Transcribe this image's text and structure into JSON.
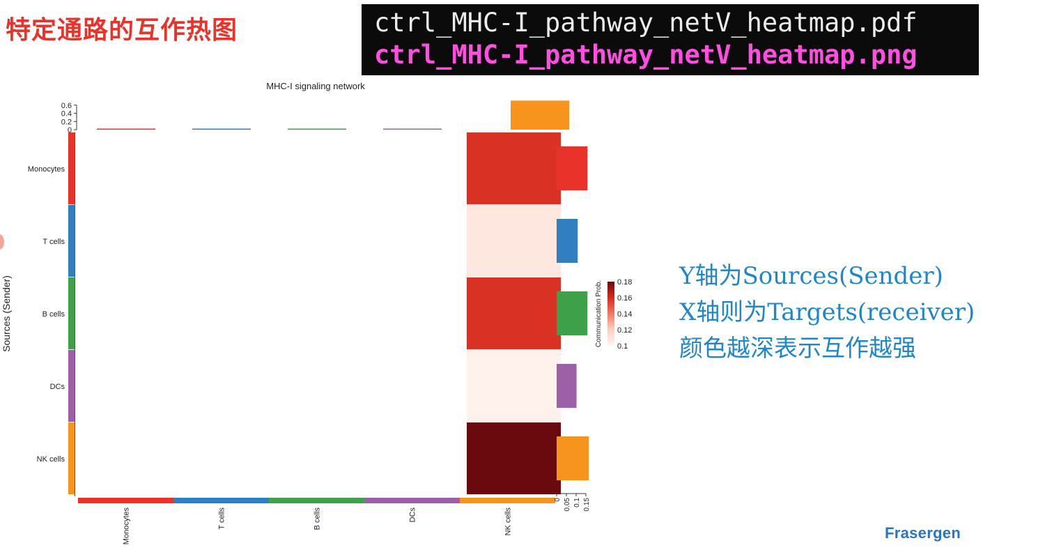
{
  "slide": {
    "title": "特定通路的互作热图",
    "terminal_lines": [
      "ctrl_MHC-I_pathway_netV_heatmap.pdf",
      "ctrl_MHC-I_pathway_netV_heatmap.png"
    ],
    "notes": [
      "Y轴为Sources(Sender)",
      "X轴则为Targets(receiver)",
      "颜色越深表示互作越强"
    ],
    "brand": "Frasergen"
  },
  "chart_data": {
    "type": "heatmap",
    "title": "MHC-I signaling network",
    "ylabel": "Sources (Sender)",
    "xlabel": "",
    "rows": [
      "Monocytes",
      "T cells",
      "B cells",
      "DCs",
      "NK cells"
    ],
    "columns": [
      "Monocytes",
      "T cells",
      "B cells",
      "DCs",
      "NK cells"
    ],
    "values": [
      [
        0,
        0,
        0,
        0,
        0.158
      ],
      [
        0,
        0,
        0,
        0,
        0.108
      ],
      [
        0,
        0,
        0,
        0,
        0.158
      ],
      [
        0,
        0,
        0,
        0,
        0.102
      ],
      [
        0,
        0,
        0,
        0,
        0.185
      ]
    ],
    "group_colors": [
      "#e8322a",
      "#2f7fc1",
      "#3fa04a",
      "#9c5fa8",
      "#f7941d"
    ],
    "color_scale": {
      "title": "Communication Prob.",
      "min": 0.1,
      "max": 0.18,
      "ticks": [
        "0.18",
        "0.16",
        "0.14",
        "0.12",
        "0.1"
      ],
      "colors": [
        "#fff6f2",
        "#fbd0bf",
        "#f07a62",
        "#d7291e",
        "#6b0a0e"
      ]
    },
    "top_bar": {
      "values": [
        0,
        0,
        0,
        0,
        0.71
      ],
      "ticks": [
        "0.6",
        "0.4",
        "0.2",
        "0"
      ],
      "max": 0.75
    },
    "right_bar": {
      "values": [
        0.158,
        0.108,
        0.158,
        0.102,
        0.185
      ],
      "ticks": [
        "0",
        "0.05",
        "0.1",
        "0.15"
      ],
      "max": 0.15
    },
    "grid": false,
    "legend_position": "right"
  }
}
